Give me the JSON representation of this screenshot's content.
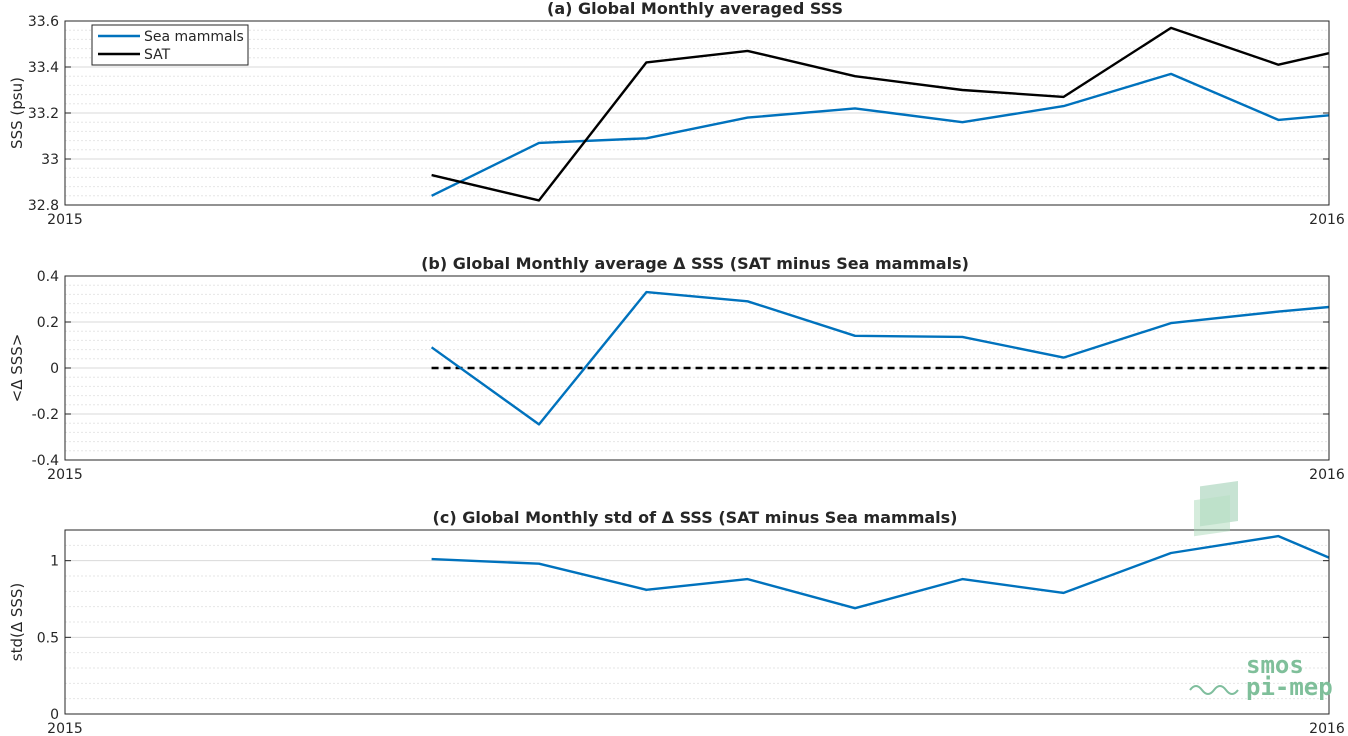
{
  "chart_data": [
    {
      "type": "line",
      "title": "(a) Global Monthly averaged SSS",
      "ylabel": "SSS (psu)",
      "xlabel": "",
      "xlim": [
        2015,
        2016
      ],
      "x_tick_labels": [
        "2015",
        "2016"
      ],
      "ylim": [
        32.8,
        33.6
      ],
      "yticks": [
        32.8,
        33,
        33.2,
        33.4,
        33.6
      ],
      "ytick_labels": [
        "32.8",
        "33",
        "33.2",
        "33.4",
        "33.6"
      ],
      "grid": true,
      "legend_position": "top-left",
      "x": [
        2015.29,
        2015.375,
        2015.46,
        2015.54,
        2015.625,
        2015.71,
        2015.79,
        2015.875,
        2015.96,
        2016.0
      ],
      "series": [
        {
          "name": "Sea mammals",
          "color": "#0072bd",
          "values": [
            32.84,
            33.07,
            33.09,
            33.18,
            33.22,
            33.16,
            33.23,
            33.37,
            33.17,
            33.19
          ]
        },
        {
          "name": "SAT",
          "color": "#000000",
          "values": [
            32.93,
            32.82,
            33.42,
            33.47,
            33.36,
            33.3,
            33.27,
            33.57,
            33.41,
            33.46
          ]
        }
      ]
    },
    {
      "type": "line",
      "title": "(b) Global Monthly average Δ SSS (SAT minus Sea mammals)",
      "ylabel": "<Δ SSS>",
      "xlabel": "",
      "xlim": [
        2015,
        2016
      ],
      "x_tick_labels": [
        "2015",
        "2016"
      ],
      "ylim": [
        -0.4,
        0.4
      ],
      "yticks": [
        -0.4,
        -0.2,
        0,
        0.2,
        0.4
      ],
      "ytick_labels": [
        "-0.4",
        "-0.2",
        "0",
        "0.2",
        "0.4"
      ],
      "grid": true,
      "reference_line": {
        "y": 0,
        "style": "dashed",
        "color": "#000000"
      },
      "x": [
        2015.29,
        2015.375,
        2015.46,
        2015.54,
        2015.625,
        2015.71,
        2015.79,
        2015.875,
        2015.96,
        2016.0
      ],
      "series": [
        {
          "color": "#0072bd",
          "values": [
            0.09,
            -0.245,
            0.33,
            0.29,
            0.14,
            0.135,
            0.045,
            0.195,
            0.245,
            0.265
          ]
        }
      ]
    },
    {
      "type": "line",
      "title": "(c) Global Monthly std of Δ SSS (SAT minus Sea mammals)",
      "ylabel": "std(Δ SSS)",
      "xlabel": "",
      "xlim": [
        2015,
        2016
      ],
      "x_tick_labels": [
        "2015",
        "2016"
      ],
      "ylim": [
        0,
        1.2
      ],
      "yticks": [
        0,
        0.5,
        1
      ],
      "ytick_labels": [
        "0",
        "0.5",
        "1"
      ],
      "grid": true,
      "x": [
        2015.29,
        2015.375,
        2015.46,
        2015.54,
        2015.625,
        2015.71,
        2015.79,
        2015.875,
        2015.96,
        2016.0
      ],
      "series": [
        {
          "color": "#0072bd",
          "values": [
            1.01,
            0.98,
            0.81,
            0.88,
            0.69,
            0.88,
            0.79,
            1.05,
            1.16,
            1.02
          ]
        }
      ]
    }
  ],
  "watermark": {
    "line1": "smos",
    "line2": "pi-mep",
    "color": "#7fbf9a"
  }
}
